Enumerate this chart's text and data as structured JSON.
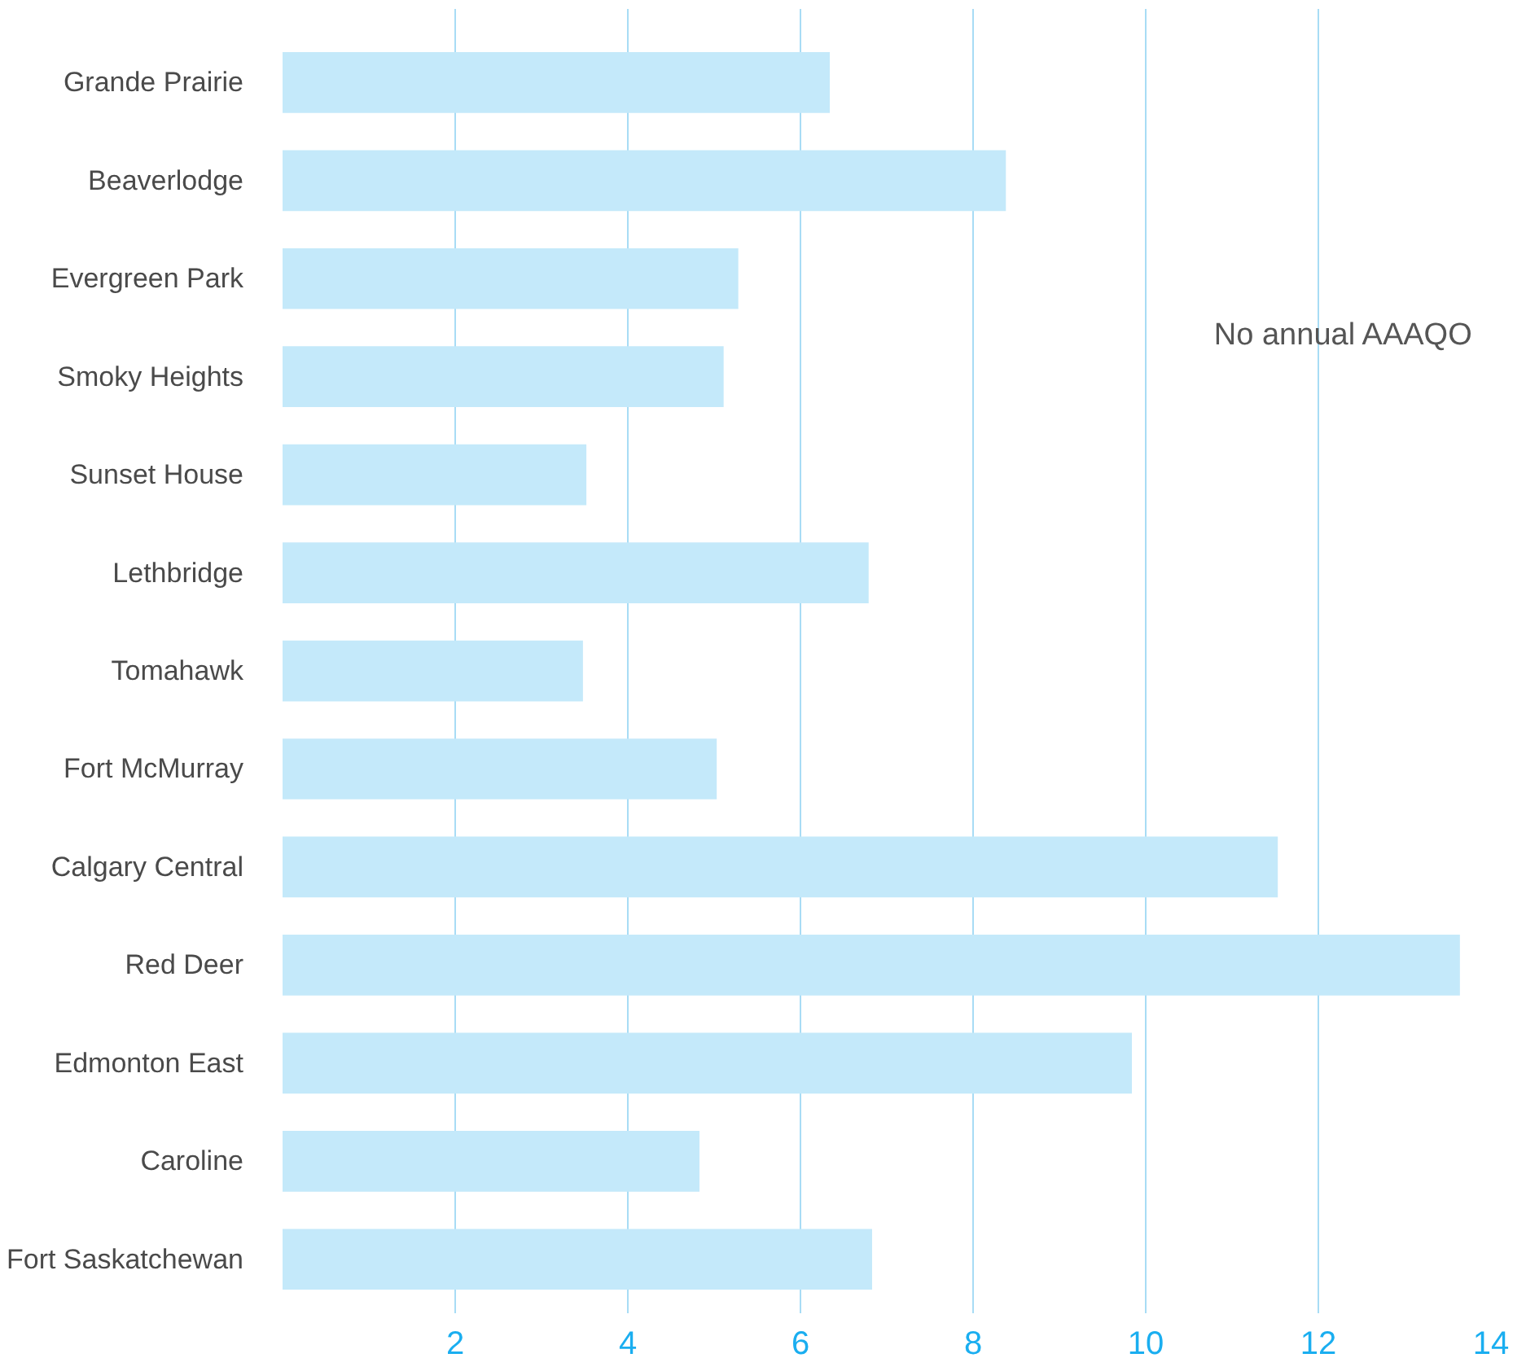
{
  "chart_data": {
    "type": "bar",
    "orientation": "horizontal",
    "categories": [
      "Grande Prairie",
      "Beaverlodge",
      "Evergreen Park",
      "Smoky Heights",
      "Sunset House",
      "Lethbridge",
      "Tomahawk",
      "Fort McMurray",
      "Calgary Central",
      "Red Deer",
      "Edmonton East",
      "Caroline",
      "Fort Saskatchewan"
    ],
    "values": [
      6.34,
      8.38,
      5.28,
      5.11,
      3.52,
      6.79,
      3.48,
      5.03,
      11.53,
      13.64,
      9.84,
      4.83,
      6.83
    ],
    "color": "#c4e9fa",
    "xlim": [
      0,
      14
    ],
    "xticks": [
      2,
      4,
      6,
      8,
      10,
      12,
      14
    ],
    "grid": "x",
    "annotations": [
      "No annual AAAQO"
    ]
  }
}
